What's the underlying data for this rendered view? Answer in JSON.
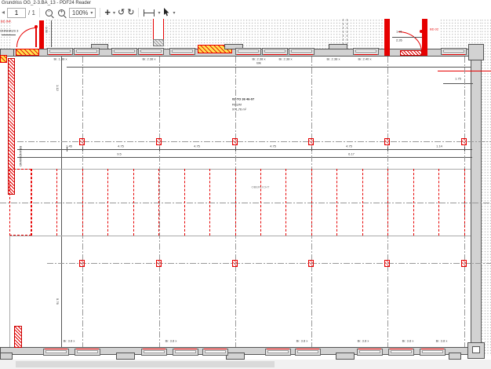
{
  "window": {
    "title": "Grundriss OG_2-3.BA_13 - PDF24 Reader"
  },
  "toolbar": {
    "back_icon": "◂",
    "page_value": "1",
    "page_separator": "/ 1",
    "zoom_value": "100%",
    "caret": "▾",
    "plus": "+",
    "rotate_left": "↺",
    "rotate_right": "↻"
  },
  "plan": {
    "labels": {
      "bd_inf": "BD.INF.",
      "wohnhaus": "OHNHAUS 3",
      "brandwand": "BRANDWAND",
      "blk": "Blk",
      "room_code": "03-TO 36 46-07",
      "room_name": "RAUM",
      "room_area": "971,76 m²",
      "skylight": "OBERLICHT",
      "dim_right": "1.75",
      "door_dim_a": "1.01",
      "door_dim_b": "2.26",
      "door_code": "BD.02",
      "dim_total_a": "9.5",
      "dim_total_b": "6.17",
      "vdim_a": "1.30",
      "vdim_b": "1.12",
      "vdim_c": "5.76"
    },
    "top_window_labels": [
      "Br. 1.38 x",
      "Br. 2.38 x",
      "Br. 2.38 x",
      "Br. 2.38 x",
      "Br. 2.38 x",
      "Br. 2.40 x"
    ],
    "bottom_window_labels": [
      "Br. 3.8 x",
      "Br. 3.8 x",
      "Br. 3.8 x",
      "Br. 3.8 x",
      "Br. 3.8 x",
      "Br. 3.8 x"
    ],
    "bay_labels": [
      "1.45",
      "4.75",
      "4.75",
      "4.75",
      "4.75",
      "1.14"
    ]
  }
}
